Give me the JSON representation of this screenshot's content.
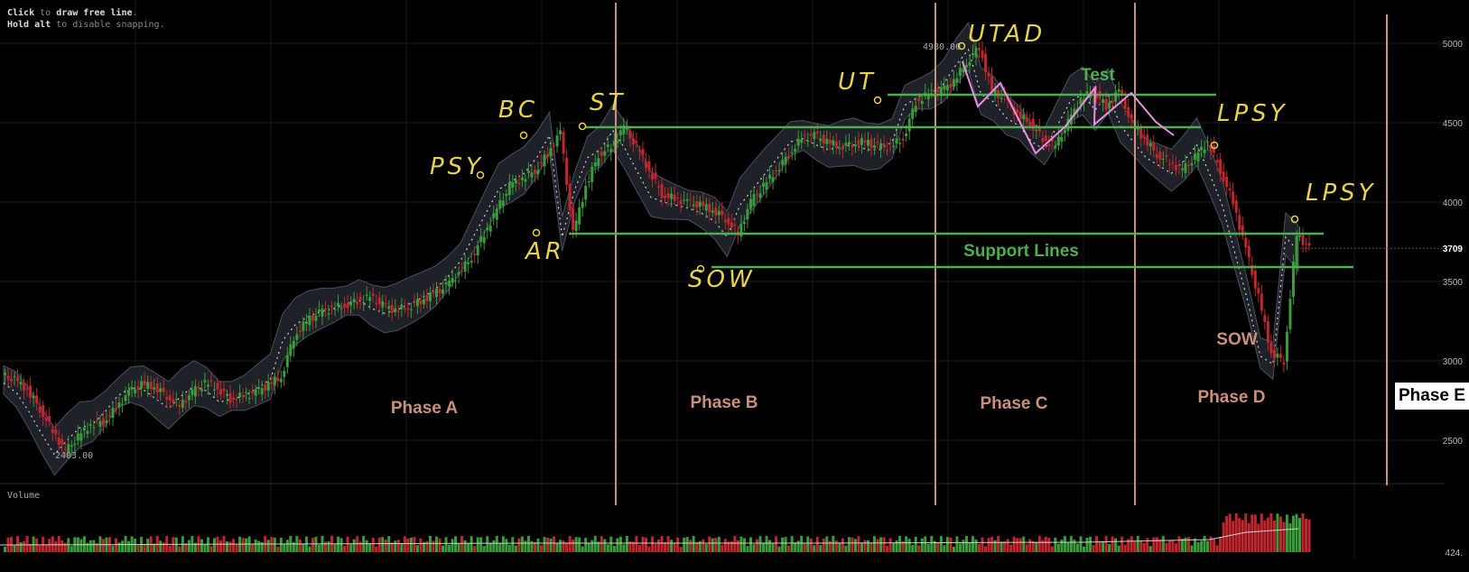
{
  "toolbar_hint": {
    "line1_bold": "Click",
    "line1_rest": " to ",
    "line1_bold2": "draw free line",
    "line1_end": ".",
    "line2_bold": "Hold alt",
    "line2_rest": " to disable snapping."
  },
  "price_axis": {
    "ticks": [
      "5000",
      "4500",
      "4000",
      "3500",
      "3000",
      "2500"
    ],
    "current_price": "3709"
  },
  "volume_panel": {
    "label": "Volume",
    "last_value": "424."
  },
  "annotations": {
    "high_price": "4980.00",
    "low_price": "2403.00",
    "phases": [
      "Phase A",
      "Phase B",
      "Phase C",
      "Phase D",
      "Phase E"
    ],
    "support_lines": "Support Lines",
    "test": "Test",
    "sow_printed": "SOW",
    "handwritten": [
      "PSY",
      "BC",
      "ST",
      "AR",
      "SOW",
      "UT",
      "UTAD",
      "LPSY",
      "LPSY"
    ]
  },
  "colors": {
    "background": "#000000",
    "up_candle": "#3a9b3a",
    "down_candle": "#c0262d",
    "phase_divider": "#c9907a",
    "support_line": "#4caf50",
    "phase_text": "#c9907a",
    "test_text": "#4caf50",
    "handwriting": "#e8d24a",
    "pink_path": "#e88fe0",
    "bollinger_fill": "#1e2128",
    "grid": "#1a1a1a"
  },
  "chart_data": {
    "type": "candlestick",
    "title": "",
    "xlabel": "",
    "ylabel": "",
    "ylim": [
      2250,
      5100
    ],
    "price_ticks": [
      5000,
      4500,
      4000,
      3500,
      3000,
      2500
    ],
    "current_price": 3709,
    "marked_high": 4980,
    "marked_low": 2403,
    "close_path": [
      2880,
      2820,
      2700,
      2560,
      2430,
      2520,
      2600,
      2620,
      2700,
      2800,
      2850,
      2840,
      2780,
      2720,
      2800,
      2860,
      2830,
      2760,
      2780,
      2800,
      2850,
      2900,
      3150,
      3250,
      3300,
      3330,
      3350,
      3380,
      3400,
      3350,
      3320,
      3340,
      3380,
      3420,
      3470,
      3550,
      3650,
      3800,
      3950,
      4100,
      4150,
      4200,
      4300,
      4440,
      3800,
      4100,
      4300,
      4350,
      4470,
      4350,
      4200,
      4050,
      4020,
      4000,
      3980,
      3950,
      3900,
      3800,
      4000,
      4100,
      4200,
      4300,
      4400,
      4420,
      4380,
      4350,
      4370,
      4380,
      4350,
      4350,
      4400,
      4630,
      4680,
      4700,
      4760,
      4880,
      4980,
      4700,
      4650,
      4550,
      4500,
      4400,
      4350,
      4500,
      4650,
      4700,
      4600,
      4700,
      4500,
      4400,
      4300,
      4250,
      4200,
      4280,
      4380,
      4200,
      4000,
      3700,
      3400,
      3050,
      3000,
      3800,
      3709
    ],
    "volume_last": 424
  }
}
